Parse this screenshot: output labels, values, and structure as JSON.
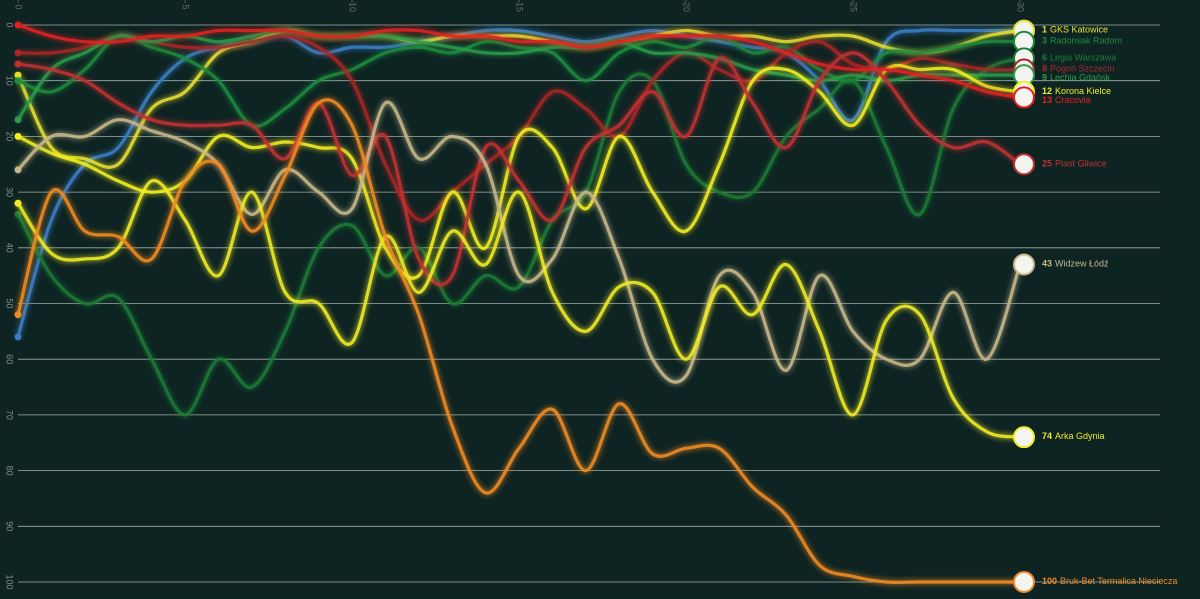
{
  "chart_data": {
    "type": "line",
    "xlim": [
      0,
      30
    ],
    "xticks": [
      0,
      5,
      10,
      15,
      20,
      25,
      30
    ],
    "ylim": [
      100,
      0
    ],
    "yticks": [
      0,
      10,
      20,
      30,
      40,
      50,
      60,
      70,
      80,
      90,
      100
    ],
    "grid": true,
    "series": [
      {
        "color": "#3a7fc4",
        "values": [
          56,
          35,
          25,
          22,
          12,
          6,
          4,
          3,
          2,
          5,
          4,
          4,
          3,
          2,
          1,
          1,
          2,
          3,
          2,
          1,
          2,
          3,
          4,
          5,
          10,
          17,
          3,
          1,
          1,
          1,
          1
        ]
      },
      {
        "name": "GKS Katowice",
        "color": "#e8e030",
        "values": [
          9,
          22,
          24,
          25,
          15,
          12,
          5,
          3,
          1,
          2,
          2,
          2,
          3,
          2,
          2,
          2,
          3,
          4,
          3,
          2,
          1,
          2,
          2,
          3,
          2,
          2,
          4,
          5,
          4,
          2,
          1
        ]
      },
      {
        "name": "Radomiak Radom",
        "color": "#1e8a3c",
        "values": [
          10,
          12,
          8,
          2,
          4,
          6,
          10,
          18,
          15,
          10,
          8,
          5,
          4,
          5,
          3,
          4,
          5,
          10,
          5,
          3,
          4,
          2,
          5,
          4,
          8,
          10,
          5,
          5,
          4,
          3,
          3
        ]
      },
      {
        "name": "Legia Warszawa",
        "color": "#1e7a34",
        "values": [
          34,
          45,
          50,
          49,
          60,
          70,
          60,
          65,
          55,
          40,
          36,
          45,
          40,
          50,
          45,
          47,
          35,
          30,
          12,
          10,
          25,
          30,
          30,
          20,
          15,
          10,
          22,
          34,
          15,
          8,
          6
        ]
      },
      {
        "name": "Pogoń Szczecin",
        "color": "#a82828",
        "values": [
          5,
          5,
          4,
          2,
          3,
          4,
          4,
          3,
          2,
          4,
          10,
          25,
          35,
          30,
          25,
          20,
          12,
          15,
          20,
          10,
          5,
          8,
          10,
          5,
          3,
          7,
          8,
          6,
          7,
          8,
          8
        ]
      },
      {
        "name": "Lechia Gdańsk",
        "color": "#2c9a48",
        "values": [
          17,
          8,
          5,
          2,
          3,
          2,
          3,
          2,
          1,
          2,
          2,
          2,
          3,
          4,
          5,
          5,
          4,
          4,
          3,
          5,
          5,
          6,
          8,
          9,
          10,
          9,
          10,
          9,
          9,
          9,
          9
        ]
      },
      {
        "name": "Korona Kielce",
        "color": "#f2ee20",
        "values": [
          20,
          23,
          25,
          28,
          30,
          28,
          20,
          22,
          21,
          22,
          24,
          40,
          45,
          30,
          40,
          20,
          22,
          33,
          20,
          30,
          37,
          25,
          10,
          8,
          12,
          18,
          8,
          8,
          8,
          11,
          12
        ]
      },
      {
        "name": "Cracovia",
        "color": "#e02020",
        "values": [
          0,
          2,
          3,
          3,
          2,
          2,
          1,
          1,
          1,
          2,
          2,
          1,
          1,
          2,
          2,
          3,
          3,
          4,
          3,
          2,
          2,
          2,
          3,
          5,
          7,
          8,
          8,
          9,
          10,
          12,
          13
        ]
      },
      {
        "name": "Piast Gliwice",
        "color": "#c03030",
        "values": [
          7,
          8,
          10,
          14,
          17,
          18,
          18,
          18,
          24,
          14,
          27,
          20,
          42,
          45,
          22,
          28,
          35,
          22,
          18,
          12,
          20,
          6,
          14,
          22,
          10,
          5,
          10,
          18,
          22,
          21,
          25
        ]
      },
      {
        "name": "Widzew Łódź",
        "color": "#c8b88a",
        "values": [
          26,
          20,
          20,
          17,
          19,
          21,
          25,
          34,
          26,
          30,
          33,
          14,
          24,
          20,
          25,
          45,
          42,
          30,
          42,
          60,
          63,
          45,
          48,
          62,
          45,
          55,
          60,
          60,
          48,
          60,
          43
        ]
      },
      {
        "name": "Arka Gdynia",
        "color": "#f0ec28",
        "values": [
          32,
          41,
          42,
          40,
          28,
          35,
          45,
          30,
          48,
          50,
          57,
          38,
          48,
          37,
          43,
          30,
          48,
          55,
          47,
          48,
          60,
          47,
          52,
          43,
          55,
          70,
          53,
          52,
          67,
          73,
          74
        ]
      },
      {
        "name": "Bruk-Bet Termalica Nieciecza",
        "color": "#f08a24",
        "values": [
          52,
          30,
          37,
          38,
          42,
          28,
          25,
          37,
          27,
          14,
          18,
          38,
          52,
          72,
          84,
          76,
          69,
          80,
          68,
          77,
          76,
          76,
          83,
          88,
          97,
          99,
          100,
          100,
          100,
          100,
          100
        ]
      }
    ]
  }
}
